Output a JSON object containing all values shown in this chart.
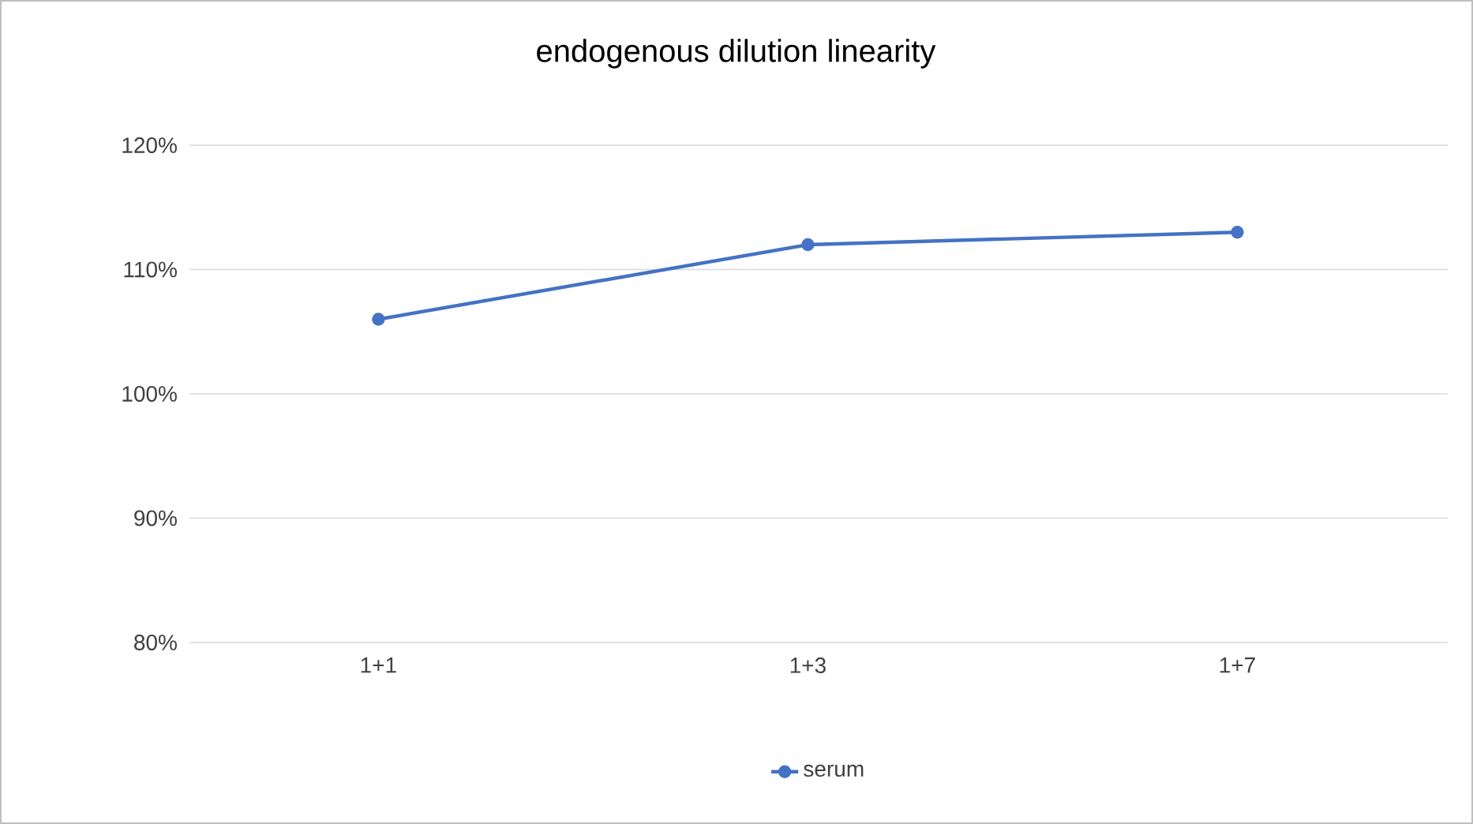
{
  "chart_data": {
    "type": "line",
    "title": "endogenous dilution linearity",
    "categories": [
      "1+1",
      "1+3",
      "1+7"
    ],
    "series": [
      {
        "name": "serum",
        "color": "#4472c4",
        "values": [
          106,
          112,
          113
        ]
      }
    ],
    "ylim": [
      80,
      120
    ],
    "yticks": [
      {
        "value": 80,
        "label": "80%"
      },
      {
        "value": 90,
        "label": "90%"
      },
      {
        "value": 100,
        "label": "100%"
      },
      {
        "value": 110,
        "label": "110%"
      },
      {
        "value": 120,
        "label": "120%"
      }
    ],
    "grid": "y",
    "legend": "bottom",
    "marker": "circle",
    "line_style": "solid"
  }
}
